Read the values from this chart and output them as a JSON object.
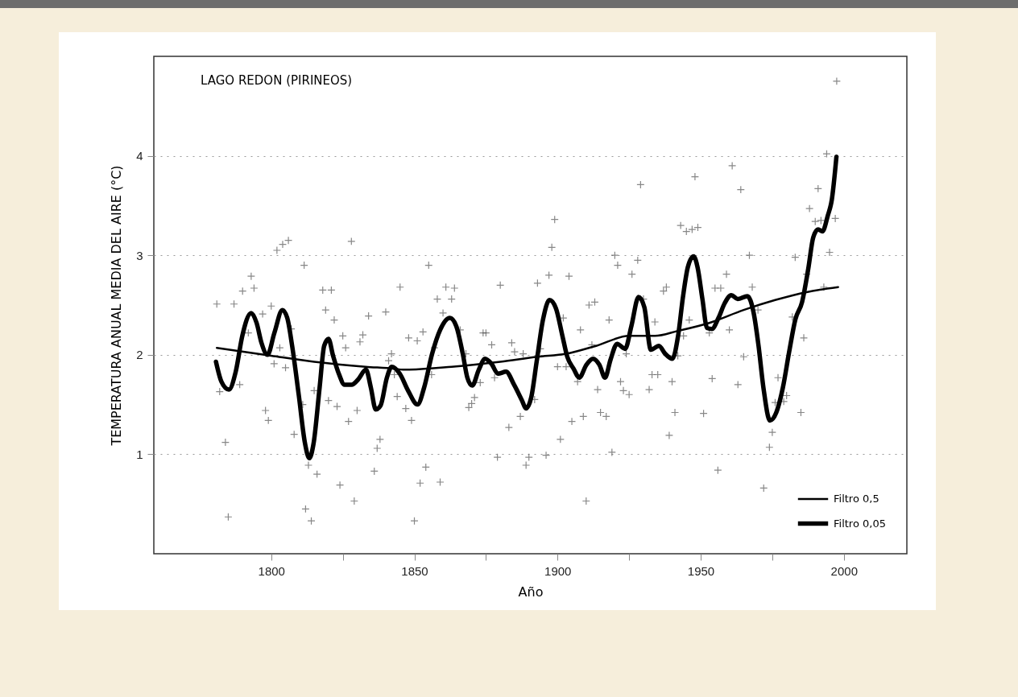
{
  "chart_data": {
    "type": "scatter",
    "title": "LAGO REDON (PIRINEOS)",
    "xlabel": "Año",
    "ylabel": "TEMPERATURA ANUAL MEDIA DEL AIRE (°C)",
    "xlim": [
      1759,
      2022
    ],
    "ylim": [
      0,
      5
    ],
    "xticks": [
      1800,
      {
        "value": 1825,
        "label": null
      },
      1850,
      {
        "value": 1875,
        "label": null
      },
      1900,
      {
        "value": 1925,
        "label": null
      },
      1950,
      {
        "value": 1975,
        "label": null
      },
      2000
    ],
    "yticks": [
      1,
      2,
      3,
      4
    ],
    "grid": "y",
    "legend": "bottom right",
    "series": [
      {
        "color": "#555555",
        "marker": "cross",
        "x": [
          1781,
          1782,
          1784,
          1785,
          1787,
          1789,
          1790,
          1792,
          1793,
          1794,
          1797,
          1798,
          1799,
          1800,
          1801,
          1802,
          1803,
          1804,
          1805,
          1806,
          1807,
          1808,
          1811,
          1811.5,
          1812,
          1813,
          1814,
          1815,
          1816,
          1818,
          1819,
          1820,
          1821,
          1822,
          1823,
          1824,
          1825,
          1826,
          1827,
          1828,
          1829,
          1830,
          1831,
          1832,
          1834,
          1836,
          1837,
          1838,
          1840,
          1841,
          1842,
          1843,
          1844,
          1845,
          1847,
          1848,
          1849,
          1850,
          1851,
          1852,
          1853,
          1854,
          1855,
          1856,
          1857,
          1858,
          1859,
          1860,
          1861,
          1863,
          1864,
          1866,
          1868,
          1869,
          1870,
          1871,
          1873,
          1874,
          1875,
          1877,
          1878,
          1879,
          1880,
          1883,
          1884,
          1885,
          1887,
          1888,
          1889,
          1890,
          1892,
          1893,
          1894,
          1896,
          1897,
          1898,
          1899,
          1900,
          1901,
          1902,
          1903,
          1904,
          1905,
          1907,
          1908,
          1909,
          1910,
          1911,
          1912,
          1913,
          1914,
          1915,
          1917,
          1918,
          1919,
          1920,
          1921,
          1922,
          1923,
          1924,
          1925,
          1926,
          1928,
          1929,
          1930,
          1932,
          1933,
          1934,
          1935,
          1937,
          1938,
          1939,
          1940,
          1941,
          1942,
          1943,
          1944,
          1945,
          1946,
          1947,
          1948,
          1949,
          1951,
          1953,
          1954,
          1955,
          1956,
          1957,
          1959,
          1960,
          1961,
          1963,
          1964,
          1965,
          1967,
          1968,
          1970,
          1972,
          1974,
          1975,
          1976,
          1977,
          1979,
          1980,
          1982,
          1983,
          1985,
          1986,
          1987,
          1988,
          1990,
          1991,
          1992,
          1993,
          1994,
          1995,
          1997,
          1997.5
        ],
        "values": [
          2.51,
          1.63,
          1.12,
          0.37,
          2.51,
          1.7,
          2.64,
          2.22,
          2.79,
          2.67,
          2.41,
          1.44,
          1.34,
          2.49,
          1.91,
          3.05,
          2.07,
          3.11,
          1.87,
          3.15,
          2.26,
          1.2,
          1.5,
          2.9,
          0.45,
          0.89,
          0.33,
          1.64,
          0.8,
          2.65,
          2.45,
          1.54,
          2.65,
          2.35,
          1.48,
          0.69,
          2.19,
          2.07,
          1.33,
          3.14,
          0.53,
          1.44,
          2.13,
          2.2,
          2.39,
          0.83,
          1.06,
          1.15,
          2.43,
          1.94,
          2.01,
          1.8,
          1.58,
          2.68,
          1.46,
          2.17,
          1.34,
          0.33,
          2.14,
          0.71,
          2.23,
          0.87,
          2.9,
          1.8,
          2.07,
          2.56,
          0.72,
          2.42,
          2.68,
          2.56,
          2.67,
          2.25,
          2.01,
          1.47,
          1.51,
          1.57,
          1.72,
          2.22,
          2.22,
          2.1,
          1.77,
          0.97,
          2.7,
          1.27,
          2.12,
          2.03,
          1.38,
          2.01,
          0.89,
          0.97,
          1.55,
          2.72,
          2.06,
          0.99,
          2.8,
          3.08,
          3.36,
          1.88,
          1.15,
          2.37,
          1.88,
          2.79,
          1.33,
          1.73,
          2.25,
          1.38,
          0.53,
          2.5,
          2.1,
          2.53,
          1.65,
          1.42,
          1.38,
          2.35,
          1.02,
          3.0,
          2.9,
          1.73,
          1.64,
          2.01,
          1.6,
          2.81,
          2.95,
          3.71,
          2.56,
          1.65,
          1.8,
          2.33,
          1.8,
          2.64,
          2.68,
          1.19,
          1.73,
          1.42,
          1.99,
          3.3,
          2.19,
          3.24,
          2.35,
          3.26,
          3.79,
          3.28,
          1.41,
          2.22,
          1.76,
          2.67,
          0.84,
          2.67,
          2.81,
          2.25,
          3.9,
          1.7,
          3.66,
          1.98,
          3.0,
          2.68,
          2.45,
          0.66,
          1.07,
          1.22,
          1.52,
          1.77,
          1.53,
          1.59,
          2.38,
          2.98,
          1.42,
          2.17,
          2.81,
          3.47,
          3.34,
          3.67,
          3.35,
          2.68,
          4.02,
          3.03,
          3.37,
          4.75
        ]
      },
      {
        "type": "line",
        "name": "Filtro 0,5",
        "color": "#000000",
        "x": [
          1781,
          1800,
          1815,
          1833,
          1843,
          1846,
          1863,
          1880,
          1893,
          1903,
          1913.5,
          1925,
          1934,
          1942,
          1953,
          1965,
          1976,
          1987,
          1998
        ],
        "values": [
          2.07,
          1.99,
          1.93,
          1.88,
          1.86,
          1.85,
          1.88,
          1.93,
          1.98,
          2.01,
          2.09,
          2.19,
          2.19,
          2.24,
          2.32,
          2.45,
          2.55,
          2.63,
          2.68
        ]
      },
      {
        "type": "line",
        "name": "Filtro 0,05",
        "color": "#000000",
        "x": [
          1780.7,
          1782.6,
          1785.2,
          1787.6,
          1789.9,
          1793,
          1794.9,
          1796.6,
          1798.7,
          1801.1,
          1803.9,
          1805.6,
          1807.3,
          1809.6,
          1811.8,
          1813.3,
          1814.8,
          1816.9,
          1818.5,
          1820,
          1821.6,
          1823.6,
          1825.6,
          1828.1,
          1830.3,
          1833.1,
          1834.8,
          1836.5,
          1838.2,
          1840.4,
          1842.1,
          1844.9,
          1847.8,
          1851.1,
          1853.4,
          1856.2,
          1859,
          1862.4,
          1864.6,
          1866.9,
          1868.5,
          1870.2,
          1872.5,
          1874.7,
          1876.9,
          1879.2,
          1882,
          1884.8,
          1887.6,
          1889,
          1890.8,
          1892.7,
          1894.9,
          1897.2,
          1899.4,
          1901.7,
          1903.4,
          1905.6,
          1907.6,
          1910.1,
          1912.4,
          1914.6,
          1916.6,
          1918.5,
          1920.8,
          1923.6,
          1925.8,
          1928.3,
          1930.3,
          1932.6,
          1935.4,
          1937.6,
          1940.1,
          1942.1,
          1943.8,
          1945.5,
          1947.5,
          1948.9,
          1950.6,
          1952.2,
          1953.9,
          1956.2,
          1958.4,
          1960.7,
          1962.9,
          1966.3,
          1968.5,
          1970.2,
          1971.9,
          1974.2,
          1976.4,
          1978.7,
          1980.9,
          1983.1,
          1985.4,
          1987.6,
          1989.3,
          1991,
          1992.5,
          1994.4,
          1995.8,
          1997.4
        ],
        "values": [
          1.93,
          1.73,
          1.65,
          1.83,
          2.19,
          2.42,
          2.32,
          2.12,
          2.0,
          2.22,
          2.45,
          2.37,
          2.09,
          1.6,
          1.11,
          0.96,
          1.11,
          1.67,
          2.09,
          2.16,
          1.99,
          1.81,
          1.7,
          1.7,
          1.75,
          1.85,
          1.67,
          1.45,
          1.49,
          1.77,
          1.88,
          1.81,
          1.64,
          1.5,
          1.67,
          2.01,
          2.25,
          2.37,
          2.29,
          2.01,
          1.77,
          1.69,
          1.85,
          1.96,
          1.91,
          1.81,
          1.83,
          1.7,
          1.54,
          1.46,
          1.57,
          1.93,
          2.35,
          2.55,
          2.47,
          2.19,
          1.98,
          1.86,
          1.77,
          1.9,
          1.96,
          1.9,
          1.77,
          1.95,
          2.11,
          2.06,
          2.29,
          2.58,
          2.48,
          2.05,
          2.09,
          2.01,
          1.96,
          2.19,
          2.58,
          2.88,
          2.99,
          2.88,
          2.56,
          2.27,
          2.26,
          2.37,
          2.52,
          2.6,
          2.56,
          2.59,
          2.42,
          2.09,
          1.67,
          1.34,
          1.42,
          1.67,
          2.03,
          2.36,
          2.53,
          2.87,
          3.18,
          3.26,
          3.24,
          3.4,
          3.56,
          3.99
        ]
      }
    ]
  }
}
